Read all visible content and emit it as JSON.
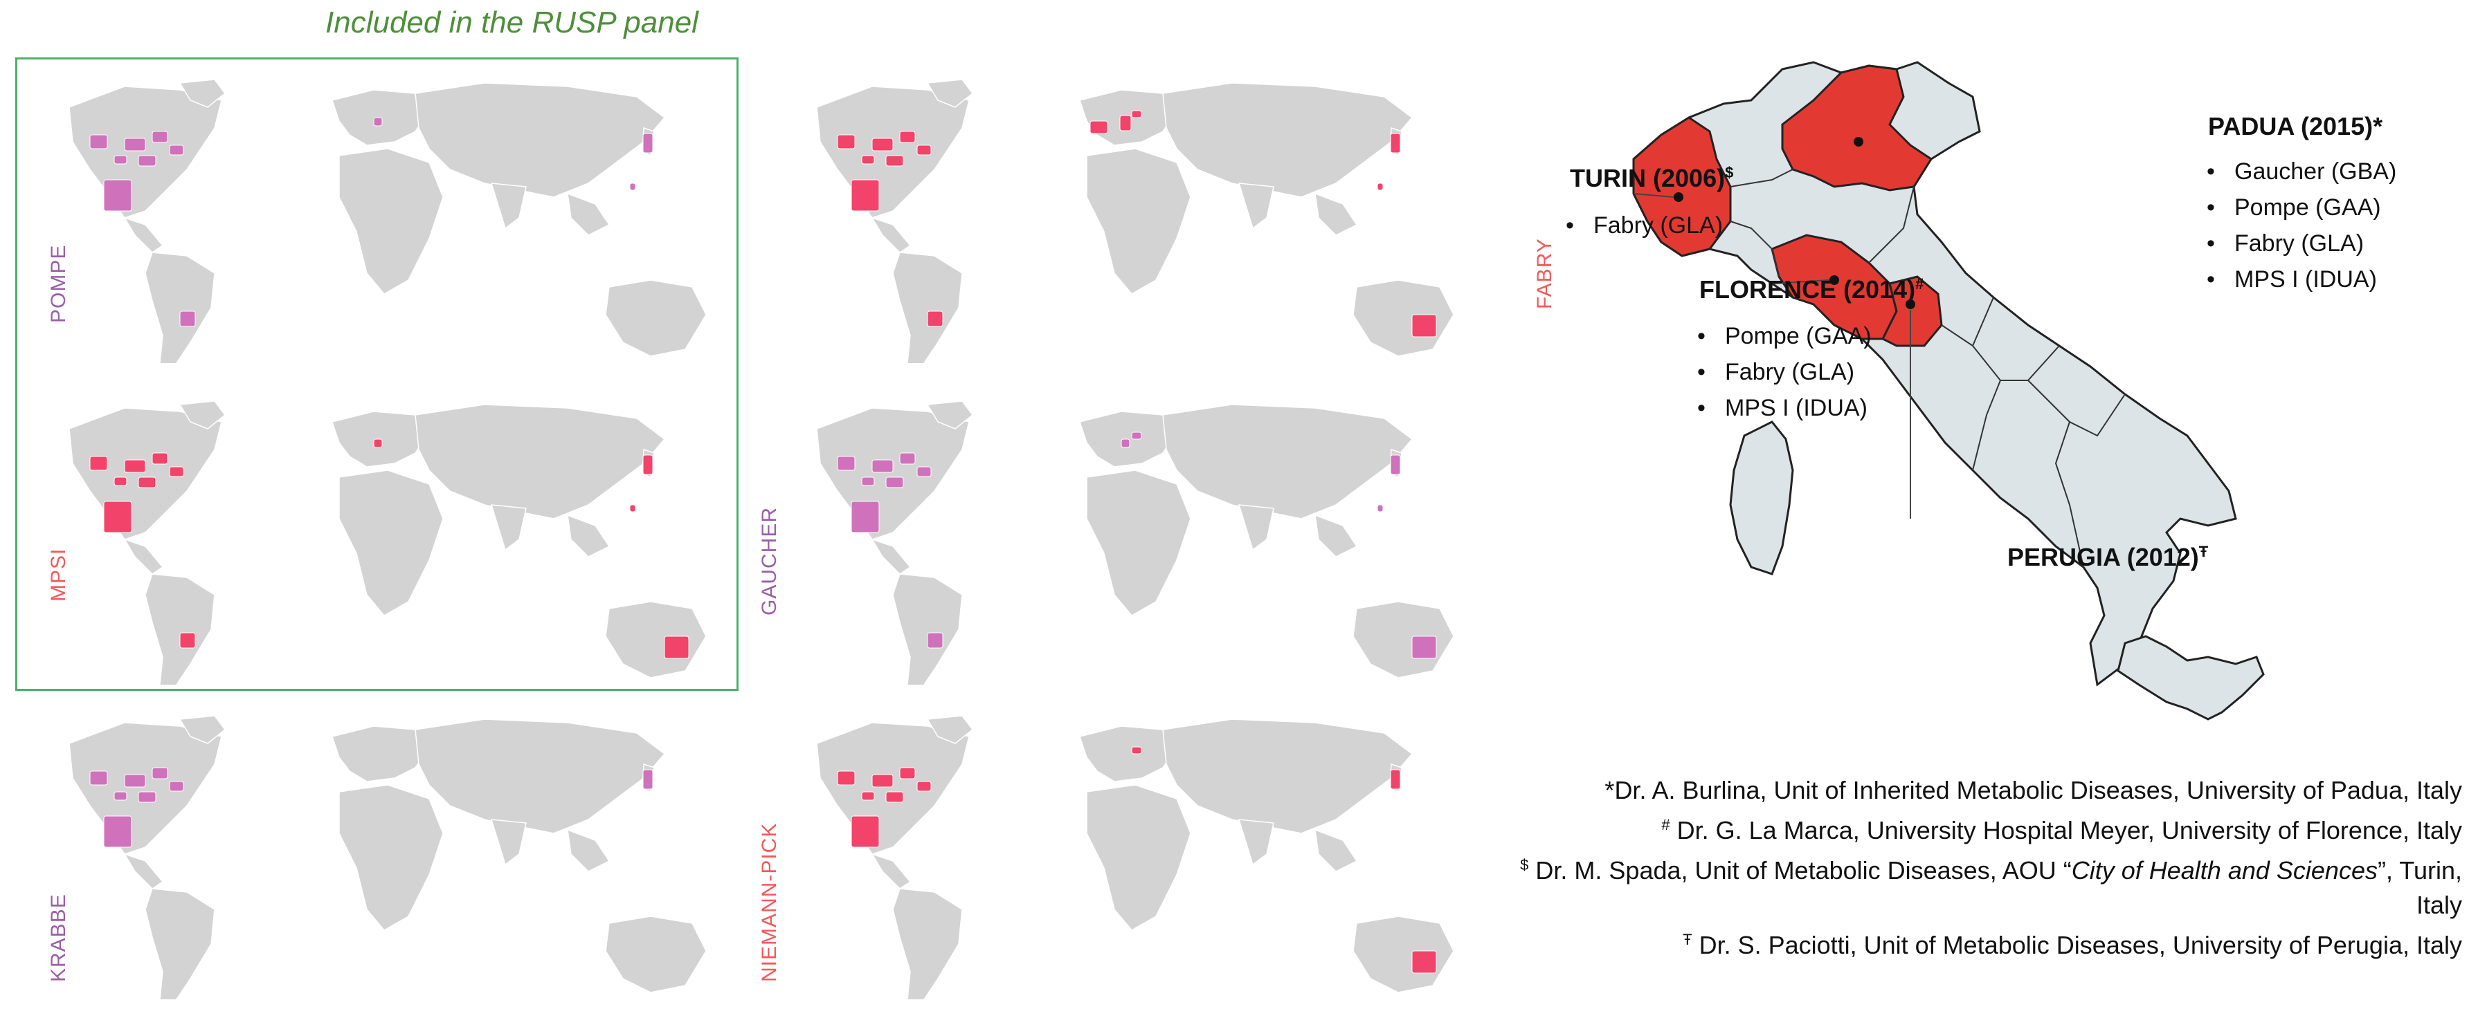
{
  "rusp_title": "Included in the RUSP panel",
  "colors": {
    "pink": "#f2436a",
    "purple": "#cf72bb",
    "land": "#d3d3d3",
    "italy_fill": "#dce4e8",
    "italy_highlight": "#e23a32",
    "rusp_border": "#4caf6a"
  },
  "maps": [
    {
      "label": "POMPE",
      "label_color": "#9b5ea8",
      "highlight_color": "#cf72bb",
      "highlighted": [
        "USA (partial)",
        "Mexico",
        "Brazil (south)",
        "Italy (north)",
        "Japan",
        "Taiwan"
      ]
    },
    {
      "label": "FABRY",
      "label_color": "#f05a5a",
      "highlight_color": "#f2436a",
      "highlighted": [
        "USA (partial)",
        "Mexico",
        "Brazil (south)",
        "Spain",
        "Italy",
        "Hungary",
        "Japan",
        "Taiwan",
        "Australia (NSW)"
      ]
    },
    {
      "label": "MPSI",
      "label_color": "#f05a5a",
      "highlight_color": "#f2436a",
      "highlighted": [
        "USA (partial)",
        "Mexico",
        "Brazil (south)",
        "Italy (north)",
        "Japan",
        "Taiwan",
        "Australia (NSW)"
      ]
    },
    {
      "label": "GAUCHER",
      "label_color": "#9b5ea8",
      "highlight_color": "#cf72bb",
      "highlighted": [
        "USA (partial)",
        "Mexico",
        "Brazil (south)",
        "Italy (north)",
        "Hungary",
        "Japan",
        "Taiwan",
        "Australia (NSW)"
      ]
    },
    {
      "label": "KRABBE",
      "label_color": "#9b5ea8",
      "highlight_color": "#cf72bb",
      "highlighted": [
        "USA (partial)",
        "Mexico",
        "Japan"
      ]
    },
    {
      "label": "NIEMANN-PICK",
      "label_color": "#f05a5a",
      "highlight_color": "#f2436a",
      "highlighted": [
        "USA (partial)",
        "Mexico",
        "Hungary",
        "Japan",
        "Australia (NSW)"
      ]
    }
  ],
  "italy_centers": [
    {
      "city": "TURIN",
      "year": "(2006)",
      "mark": "$",
      "enzymes": [
        "Fabry (GLA)"
      ]
    },
    {
      "city": "PADUA",
      "year": "(2015)",
      "mark": "*",
      "enzymes": [
        "Gaucher (GBA)",
        "Pompe (GAA)",
        "Fabry (GLA)",
        "MPS I (IDUA)"
      ]
    },
    {
      "city": "FLORENCE",
      "year": "(2014)",
      "mark": "#",
      "enzymes": [
        "Pompe (GAA)",
        "Fabry (GLA)",
        "MPS I (IDUA)"
      ]
    },
    {
      "city": "PERUGIA",
      "year": "(2012)",
      "mark": "Ŧ",
      "enzymes": []
    }
  ],
  "footnotes": [
    {
      "mark": "*",
      "text": "Dr. A. Burlina, Unit of Inherited Metabolic Diseases, University of Padua, Italy"
    },
    {
      "mark": "#",
      "text": " Dr. G. La Marca, University Hospital Meyer, University of Florence, Italy"
    },
    {
      "mark": "$",
      "text_before": " Dr. M. Spada, Unit of Metabolic Diseases, AOU “",
      "text_italic": "City of Health and Sciences",
      "text_after": "”, Turin, Italy"
    },
    {
      "mark": "Ŧ",
      "text": " Dr. S. Paciotti, Unit of Metabolic Diseases, University of Perugia, Italy"
    }
  ]
}
